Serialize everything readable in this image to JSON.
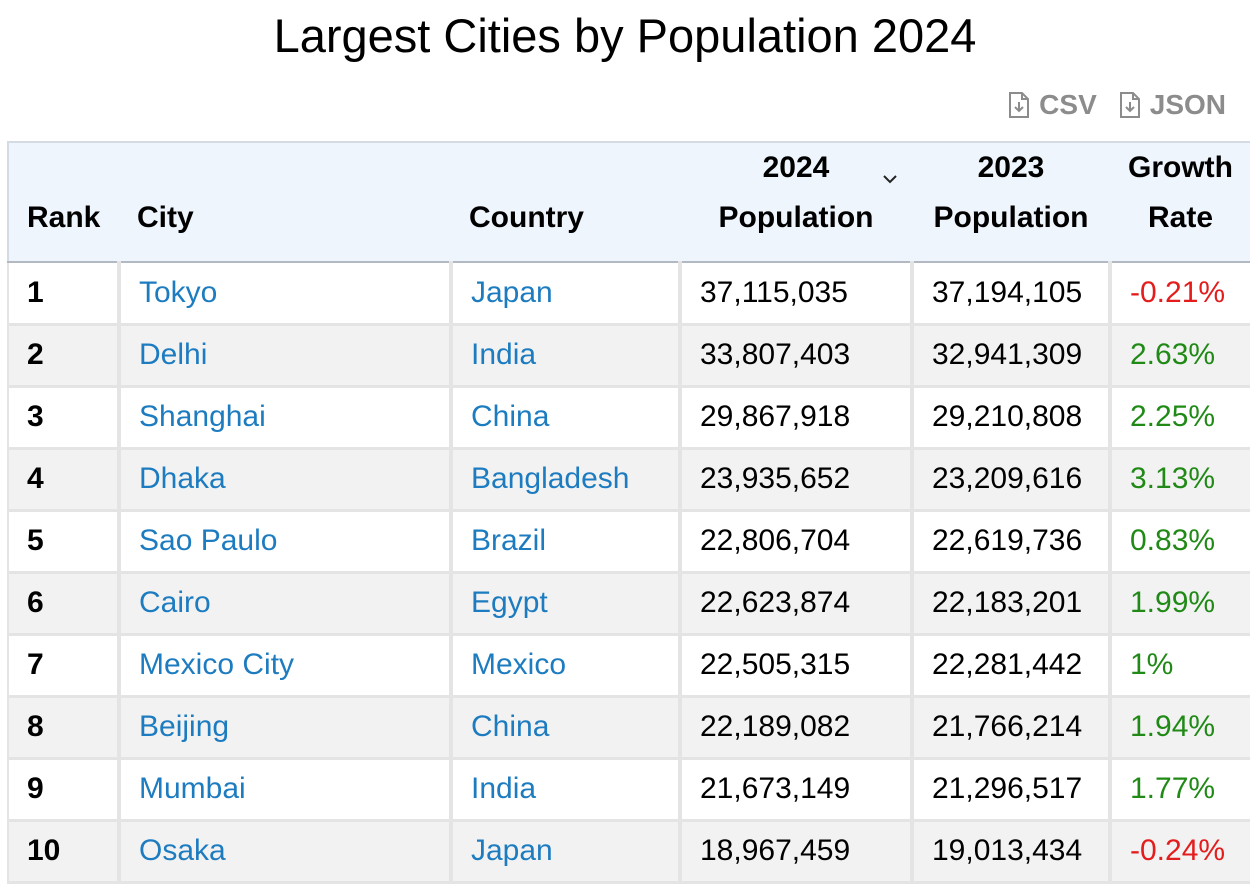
{
  "page": {
    "title": "Largest Cities by Population 2024"
  },
  "downloads": [
    {
      "label": "CSV",
      "icon": "file-download-icon"
    },
    {
      "label": "JSON",
      "icon": "file-download-icon"
    }
  ],
  "table": {
    "headers": {
      "rank": "Rank",
      "city": "City",
      "country": "Country",
      "pop2024_line1": "2024",
      "pop2024_line2": "Population",
      "pop2023_line1": "2023",
      "pop2023_line2": "Population",
      "growth_line1": "Growth",
      "growth_line2": "Rate"
    },
    "sort": {
      "column": "2024 Population",
      "direction": "descending",
      "icon": "chevron-down-icon"
    },
    "rows": [
      {
        "rank": "1",
        "city": "Tokyo",
        "country": "Japan",
        "pop2024": "37,115,035",
        "pop2023": "37,194,105",
        "growth": "-0.21%"
      },
      {
        "rank": "2",
        "city": "Delhi",
        "country": "India",
        "pop2024": "33,807,403",
        "pop2023": "32,941,309",
        "growth": "2.63%"
      },
      {
        "rank": "3",
        "city": "Shanghai",
        "country": "China",
        "pop2024": "29,867,918",
        "pop2023": "29,210,808",
        "growth": "2.25%"
      },
      {
        "rank": "4",
        "city": "Dhaka",
        "country": "Bangladesh",
        "pop2024": "23,935,652",
        "pop2023": "23,209,616",
        "growth": "3.13%"
      },
      {
        "rank": "5",
        "city": "Sao Paulo",
        "country": "Brazil",
        "pop2024": "22,806,704",
        "pop2023": "22,619,736",
        "growth": "0.83%"
      },
      {
        "rank": "6",
        "city": "Cairo",
        "country": "Egypt",
        "pop2024": "22,623,874",
        "pop2023": "22,183,201",
        "growth": "1.99%"
      },
      {
        "rank": "7",
        "city": "Mexico City",
        "country": "Mexico",
        "pop2024": "22,505,315",
        "pop2023": "22,281,442",
        "growth": "1%"
      },
      {
        "rank": "8",
        "city": "Beijing",
        "country": "China",
        "pop2024": "22,189,082",
        "pop2023": "21,766,214",
        "growth": "1.94%"
      },
      {
        "rank": "9",
        "city": "Mumbai",
        "country": "India",
        "pop2024": "21,673,149",
        "pop2023": "21,296,517",
        "growth": "1.77%"
      },
      {
        "rank": "10",
        "city": "Osaka",
        "country": "Japan",
        "pop2024": "18,967,459",
        "pop2023": "19,013,434",
        "growth": "-0.24%"
      }
    ]
  },
  "colors": {
    "link": "#1d7cc0",
    "negative": "#e31c1c",
    "positive": "#218a17",
    "header_bg": "#eef5fc",
    "download_text": "#8c8c8c"
  }
}
